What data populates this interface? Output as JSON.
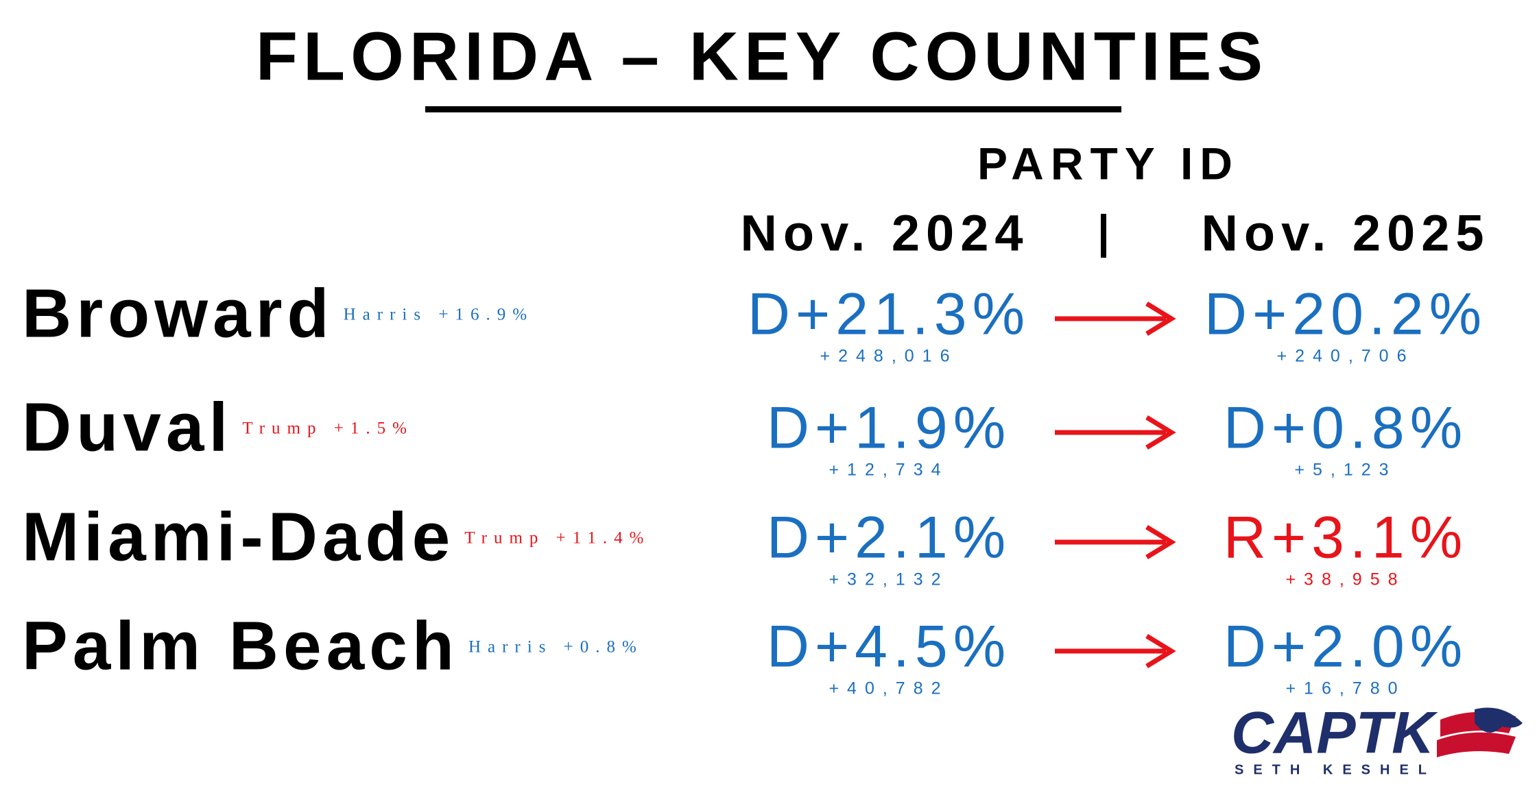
{
  "header": {
    "title": "FLORIDA – KEY COUNTIES",
    "subtitle": "PARTY ID",
    "col_2024": "Nov. 2024",
    "col_2025": "Nov. 2025"
  },
  "rows": [
    {
      "county": "Broward",
      "result": "Harris +16.9%",
      "result_color": "#1a6fc0",
      "v2024": "D+21.3%",
      "v2024_color": "#1a6fc0",
      "n2024": "+248,016",
      "v2025": "D+20.2%",
      "v2025_color": "#1a6fc0",
      "n2025": "+240,706"
    },
    {
      "county": "Duval",
      "result": "Trump +1.5%",
      "result_color": "#e8141a",
      "v2024": "D+1.9%",
      "v2024_color": "#1a6fc0",
      "n2024": "+12,734",
      "v2025": "D+0.8%",
      "v2025_color": "#1a6fc0",
      "n2025": "+5,123"
    },
    {
      "county": "Miami-Dade",
      "result": "Trump +11.4%",
      "result_color": "#e8141a",
      "v2024": "D+2.1%",
      "v2024_color": "#1a6fc0",
      "n2024": "+32,132",
      "v2025": "R+3.1%",
      "v2025_color": "#e8141a",
      "n2025": "+38,958"
    },
    {
      "county": "Palm Beach",
      "result": "Harris +0.8%",
      "result_color": "#1a6fc0",
      "v2024": "D+4.5%",
      "v2024_color": "#1a6fc0",
      "n2024": "+40,782",
      "v2025": "D+2.0%",
      "v2025_color": "#1a6fc0",
      "n2025": "+16,780"
    }
  ],
  "logo": {
    "name": "CAPTK",
    "byline": "SETH KESHEL"
  }
}
